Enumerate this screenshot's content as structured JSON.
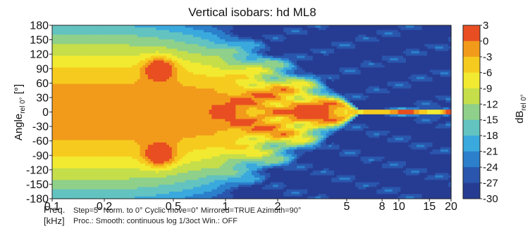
{
  "chart_data": {
    "type": "heatmap",
    "title": "Vertical isobars: hd ML8",
    "ylabel": {
      "main": "Angle",
      "sub": "rel 0°",
      "unit": "[°]"
    },
    "y_ticks": [
      "180",
      "150",
      "120",
      "90",
      "60",
      "30",
      "0",
      "-30",
      "-60",
      "-90",
      "-120",
      "-150",
      "-180"
    ],
    "ylim": [
      -180,
      180
    ],
    "x_scale": "log",
    "xlim": [
      0.1,
      20
    ],
    "x_ticks": [
      {
        "value": 0.1,
        "label": "0.1"
      },
      {
        "value": 0.2,
        "label": "0.2"
      },
      {
        "value": 0.5,
        "label": "0.5"
      },
      {
        "value": 1,
        "label": "1"
      },
      {
        "value": 2,
        "label": "2"
      },
      {
        "value": 5,
        "label": "5"
      },
      {
        "value": 8,
        "label": "8"
      },
      {
        "value": 10,
        "label": "10"
      },
      {
        "value": 15,
        "label": "15"
      },
      {
        "value": 20,
        "label": "20"
      }
    ],
    "xlabel": {
      "line1": "Freq.",
      "line2": "[kHz]"
    },
    "colorbar": {
      "label_main": "dB",
      "label_sub": "rel 0°",
      "ticks": [
        "3",
        "0",
        "-3",
        "-6",
        "-9",
        "-12",
        "-15",
        "-18",
        "-21",
        "-24",
        "-27",
        "-30"
      ],
      "levels": [
        {
          "from": 0,
          "to": 3,
          "color": "#e84e21"
        },
        {
          "from": -3,
          "to": 0,
          "color": "#f29b1b"
        },
        {
          "from": -6,
          "to": -3,
          "color": "#f6cb1f"
        },
        {
          "from": -9,
          "to": -6,
          "color": "#f2ea30"
        },
        {
          "from": -12,
          "to": -9,
          "color": "#c5de4a"
        },
        {
          "from": -15,
          "to": -12,
          "color": "#8fd08a"
        },
        {
          "from": -18,
          "to": -15,
          "color": "#63c3c0"
        },
        {
          "from": -21,
          "to": -18,
          "color": "#3aa9dd"
        },
        {
          "from": -24,
          "to": -21,
          "color": "#2b7fcb"
        },
        {
          "from": -27,
          "to": -24,
          "color": "#2a56ad"
        },
        {
          "from": -30,
          "to": -27,
          "color": "#263c92"
        }
      ]
    },
    "footnotes": {
      "line1": "Step=5°   Norm. to 0°   Cyclic move=0°   Mirrored=TRUE   Azimuth=90°",
      "line2": "Proc.: Smooth: continuous log 1/3oct   Win.: OFF"
    }
  }
}
